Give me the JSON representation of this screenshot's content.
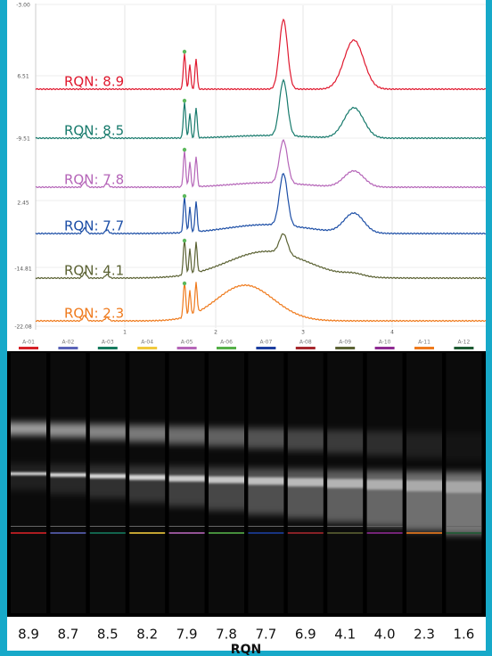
{
  "electropherogram": {
    "y_labels": [
      "-3.00",
      "6.51",
      "-9.51",
      "2.45",
      "-14.81",
      "-22.08"
    ],
    "x_labels": [
      "1",
      "2",
      "3",
      "4"
    ],
    "traces": [
      {
        "label": "RQN: 8.9",
        "color": "#e0192f"
      },
      {
        "label": "RQN: 8.5",
        "color": "#177a6c"
      },
      {
        "label": "RQN: 7.8",
        "color": "#b565b8"
      },
      {
        "label": "RQN: 7.7",
        "color": "#1c4ea6"
      },
      {
        "label": "RQN: 4.1",
        "color": "#5b6233"
      },
      {
        "label": "RQN: 2.3",
        "color": "#ef7a1c"
      }
    ]
  },
  "gel": {
    "lanes": [
      {
        "name": "A-01",
        "color": "#d62027",
        "rqn": "8.9"
      },
      {
        "name": "A-02",
        "color": "#5a63b8",
        "rqn": "8.7"
      },
      {
        "name": "A-03",
        "color": "#157a5e",
        "rqn": "8.5"
      },
      {
        "name": "A-04",
        "color": "#f1c93c",
        "rqn": "8.2"
      },
      {
        "name": "A-05",
        "color": "#b565b8",
        "rqn": "7.9"
      },
      {
        "name": "A-06",
        "color": "#55b048",
        "rqn": "7.8"
      },
      {
        "name": "A-07",
        "color": "#1c3ea0",
        "rqn": "7.7"
      },
      {
        "name": "A-08",
        "color": "#a6272d",
        "rqn": "6.9"
      },
      {
        "name": "A-09",
        "color": "#5b6233",
        "rqn": "4.1"
      },
      {
        "name": "A-10",
        "color": "#8e2a92",
        "rqn": "4.0"
      },
      {
        "name": "A-11",
        "color": "#ef7a1c",
        "rqn": "2.3"
      },
      {
        "name": "A-12",
        "color": "#1d5a32",
        "rqn": "1.6"
      }
    ]
  },
  "axis_title": "RQN"
}
